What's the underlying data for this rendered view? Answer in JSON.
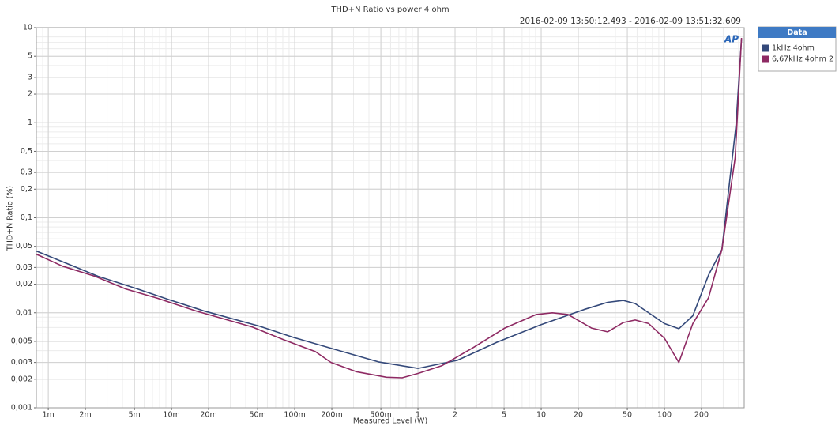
{
  "chart_data": {
    "type": "line",
    "title": "THD+N Ratio vs power 4 ohm",
    "subtitle": "2016-02-09 13:50:12.493 - 2016-02-09 13:51:32.609",
    "logo": "AP",
    "x_label": "Measured Level (W)",
    "y_label": "THD+N Ratio (%)",
    "legend_title": "Data",
    "legend": "right",
    "xscale": "log",
    "yscale": "log",
    "grid": true,
    "minor_grid": true,
    "xlim": [
      0.0008,
      444
    ],
    "ylim": [
      0.001,
      10
    ],
    "xticks": [
      {
        "value": 0.001,
        "label": "1m"
      },
      {
        "value": 0.002,
        "label": "2m"
      },
      {
        "value": 0.005,
        "label": "5m"
      },
      {
        "value": 0.01,
        "label": "10m"
      },
      {
        "value": 0.02,
        "label": "20m"
      },
      {
        "value": 0.05,
        "label": "50m"
      },
      {
        "value": 0.1,
        "label": "100m"
      },
      {
        "value": 0.2,
        "label": "200m"
      },
      {
        "value": 0.5,
        "label": "500m"
      },
      1,
      2,
      5,
      10,
      20,
      50,
      100,
      200
    ],
    "yticks": [
      10,
      5,
      3,
      2,
      1,
      {
        "value": 0.5,
        "label": "0,5"
      },
      {
        "value": 0.3,
        "label": "0,3"
      },
      {
        "value": 0.2,
        "label": "0,2"
      },
      {
        "value": 0.1,
        "label": "0,1"
      },
      {
        "value": 0.05,
        "label": "0,05"
      },
      {
        "value": 0.03,
        "label": "0,03"
      },
      {
        "value": 0.02,
        "label": "0,02"
      },
      {
        "value": 0.01,
        "label": "0,01"
      },
      {
        "value": 0.005,
        "label": "0,005"
      },
      {
        "value": 0.003,
        "label": "0,003"
      },
      {
        "value": 0.002,
        "label": "0,002"
      },
      {
        "value": 0.001,
        "label": "0,001"
      }
    ],
    "series": [
      {
        "name": "1kHz 4ohm",
        "color": "#34497a",
        "x": [
          0.0008,
          0.0015,
          0.00254,
          0.0053,
          0.0098,
          0.0186,
          0.0522,
          0.098,
          0.229,
          0.478,
          1,
          2.09,
          4.38,
          10,
          22.2,
          34.6,
          46.4,
          57.9,
          100,
          131,
          170,
          228,
          293,
          381,
          422
        ],
        "values": [
          0.0447,
          0.032,
          0.0242,
          0.0178,
          0.0136,
          0.0104,
          0.0072,
          0.0055,
          0.004,
          0.00304,
          0.0026,
          0.00316,
          0.0049,
          0.0075,
          0.0108,
          0.0129,
          0.0135,
          0.0125,
          0.0077,
          0.0068,
          0.0093,
          0.025,
          0.0464,
          0.93,
          7.6
        ]
      },
      {
        "name": "6,67kHz 4ohm 2",
        "color": "#8e2a63",
        "x": [
          0.0008,
          0.0013,
          0.0024,
          0.00425,
          0.0077,
          0.016,
          0.045,
          0.0813,
          0.147,
          0.197,
          0.316,
          0.555,
          0.745,
          1,
          1.56,
          2.81,
          5.06,
          9.14,
          12.3,
          16.5,
          25.6,
          34.6,
          46.4,
          57.9,
          74.5,
          100,
          131,
          170,
          228,
          293,
          375,
          422
        ],
        "values": [
          0.0414,
          0.031,
          0.0242,
          0.0178,
          0.0142,
          0.0104,
          0.0071,
          0.0052,
          0.0039,
          0.003,
          0.0024,
          0.0021,
          0.00207,
          0.0023,
          0.00277,
          0.0043,
          0.0069,
          0.0096,
          0.01,
          0.0096,
          0.0069,
          0.0063,
          0.0079,
          0.0084,
          0.0077,
          0.0054,
          0.003,
          0.0077,
          0.0144,
          0.0464,
          0.43,
          7.8
        ]
      }
    ]
  }
}
